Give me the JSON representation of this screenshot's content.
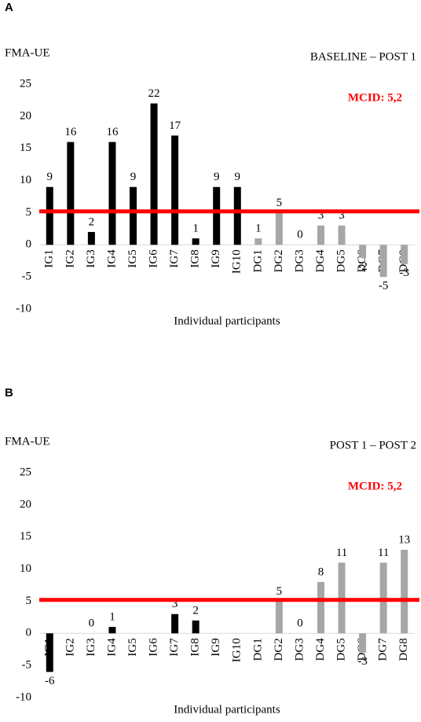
{
  "chart_data": [
    {
      "type": "bar",
      "panel": "A",
      "subtitle": "BASELINE – POST 1",
      "y_label": "FMA-UE",
      "x_label": "Individual participants",
      "categories": [
        "IG1",
        "IG2",
        "IG3",
        "IG4",
        "IG5",
        "IG6",
        "IG7",
        "IG8",
        "IG9",
        "IG10",
        "DG1",
        "DG2",
        "DG3",
        "DG4",
        "DG5",
        "DG6",
        "DG7",
        "DG8"
      ],
      "values": [
        9,
        16,
        2,
        16,
        9,
        22,
        17,
        1,
        9,
        9,
        1,
        5,
        0,
        3,
        3,
        -2,
        -5,
        -3
      ],
      "colors": [
        "#000000",
        "#000000",
        "#000000",
        "#000000",
        "#000000",
        "#000000",
        "#000000",
        "#000000",
        "#000000",
        "#000000",
        "#a6a6a6",
        "#a6a6a6",
        "#a6a6a6",
        "#a6a6a6",
        "#a6a6a6",
        "#a6a6a6",
        "#a6a6a6",
        "#a6a6a6"
      ],
      "ylim": [
        -10,
        25
      ],
      "yticks": [
        -10,
        -5,
        0,
        5,
        10,
        15,
        20,
        25
      ],
      "reference_line": {
        "value": 5.2,
        "label": "MCID: 5,2",
        "color": "#ff0000"
      }
    },
    {
      "type": "bar",
      "panel": "B",
      "subtitle": "POST 1 – POST 2",
      "y_label": "FMA-UE",
      "x_label": "Individual participants",
      "categories": [
        "IG1",
        "IG2",
        "IG3",
        "IG4",
        "IG5",
        "IG6",
        "IG7",
        "IG8",
        "IG9",
        "IG10",
        "DG1",
        "DG2",
        "DG3",
        "DG4",
        "DG5",
        "DG6",
        "DG7",
        "DG8"
      ],
      "values": [
        -6,
        null,
        0,
        1,
        null,
        null,
        3,
        2,
        null,
        null,
        null,
        5,
        0,
        8,
        11,
        -3,
        11,
        13
      ],
      "colors": [
        "#000000",
        "#000000",
        "#000000",
        "#000000",
        "#000000",
        "#000000",
        "#000000",
        "#000000",
        "#000000",
        "#000000",
        "#a6a6a6",
        "#a6a6a6",
        "#a6a6a6",
        "#a6a6a6",
        "#a6a6a6",
        "#a6a6a6",
        "#a6a6a6",
        "#a6a6a6"
      ],
      "ylim": [
        -10,
        25
      ],
      "yticks": [
        -10,
        -5,
        0,
        5,
        10,
        15,
        20,
        25
      ],
      "reference_line": {
        "value": 5.2,
        "label": "MCID: 5,2",
        "color": "#ff0000"
      }
    }
  ]
}
